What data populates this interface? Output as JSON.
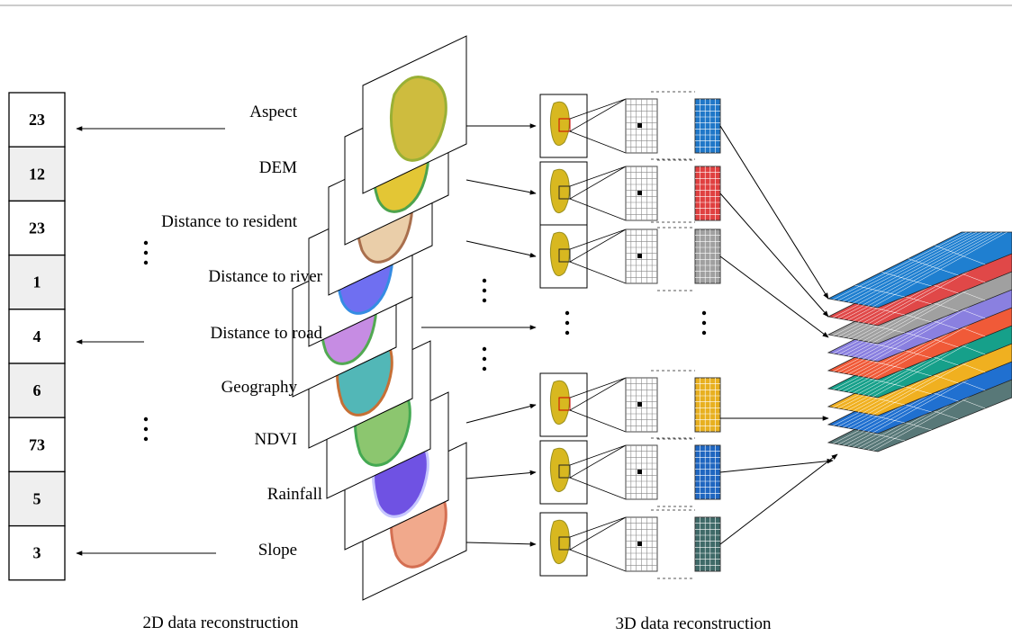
{
  "column": {
    "cells": [
      "23",
      "12",
      "23",
      "1",
      "4",
      "6",
      "73",
      "5",
      "3"
    ]
  },
  "factors": {
    "labels": [
      "Aspect",
      "DEM",
      "Distance to resident",
      "Distance to river",
      "Distance to road",
      "Geography",
      "NDVI",
      "Rainfall",
      "Slope"
    ]
  },
  "captions": {
    "left": "2D data reconstruction",
    "right": "3D data reconstruction"
  }
}
